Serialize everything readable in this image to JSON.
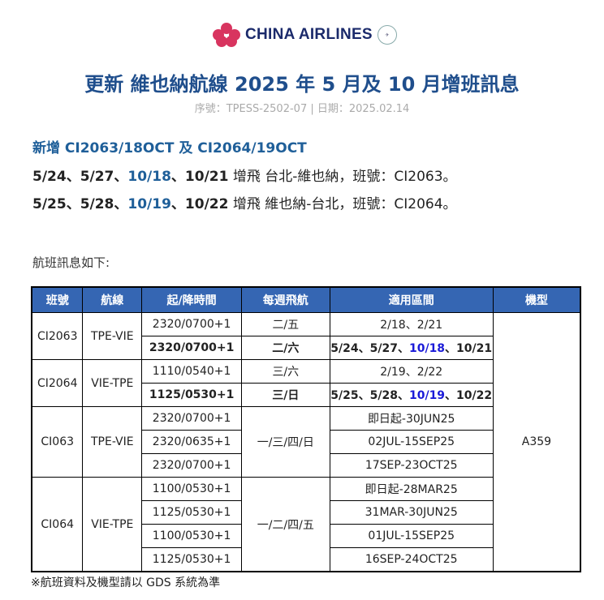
{
  "logo": {
    "text": "CHINA AIRLINES",
    "badge": "SKYTEAM"
  },
  "title": "更新  維也納航線 2025 年 5 月及 10 月增班訊息",
  "subtitle": "序號：TPESS-2502-07 | 日期：2025.02.14",
  "heading": "新增 CI2063/18OCT  及 CI2064/19OCT",
  "lines": [
    {
      "d1": "5/24、5/27、",
      "d2": "10/18",
      "d3": "、10/21",
      "rest": " 增飛  台北-維也納，班號：CI2063。"
    },
    {
      "d1": "5/25、5/28、",
      "d2": "10/19",
      "d3": "、10/22",
      "rest": " 增飛  維也納-台北，班號：CI2064。"
    }
  ],
  "intro": "航班訊息如下:",
  "table": {
    "headers": [
      "班號",
      "航線",
      "起/降時間",
      "每週飛航",
      "適用區間",
      "機型"
    ],
    "aircraft": "A359",
    "groups": [
      {
        "flight": "CI2063",
        "route": "TPE-VIE",
        "rows": [
          {
            "time": "2320/0700+1",
            "days": "二/五",
            "period": "2/18、2/21"
          },
          {
            "time": "2320/0700+1",
            "days": "二/六",
            "p1": "5/24、5/27、",
            "p2": "10/18",
            "p3": "、10/21"
          }
        ]
      },
      {
        "flight": "CI2064",
        "route": "VIE-TPE",
        "rows": [
          {
            "time": "1110/0540+1",
            "days": "三/六",
            "period": "2/19、2/22"
          },
          {
            "time": "1125/0530+1",
            "days": "三/日",
            "p1": "5/25、5/28、",
            "p2": "10/19",
            "p3": "、10/22"
          }
        ]
      },
      {
        "flight": "CI063",
        "route": "TPE-VIE",
        "days": "一/三/四/日",
        "rows": [
          {
            "time": "2320/0700+1",
            "period": "即日起-30JUN25"
          },
          {
            "time": "2320/0635+1",
            "period": "02JUL-15SEP25"
          },
          {
            "time": "2320/0700+1",
            "period": "17SEP-23OCT25"
          }
        ]
      },
      {
        "flight": "CI064",
        "route": "VIE-TPE",
        "days": "一/二/四/五",
        "rows": [
          {
            "time": "1100/0530+1",
            "period": "即日起-28MAR25"
          },
          {
            "time": "1125/0530+1",
            "period": "31MAR-30JUN25"
          },
          {
            "time": "1100/0530+1",
            "period": "01JUL-15SEP25"
          },
          {
            "time": "1125/0530+1",
            "period": "16SEP-24OCT25"
          }
        ]
      }
    ]
  },
  "note": "※航班資料及機型請以  GDS  系統為準",
  "colors": {
    "title": "#1f4e8c",
    "header_bg": "#3566b3",
    "highlight": "#1a1ad8"
  }
}
